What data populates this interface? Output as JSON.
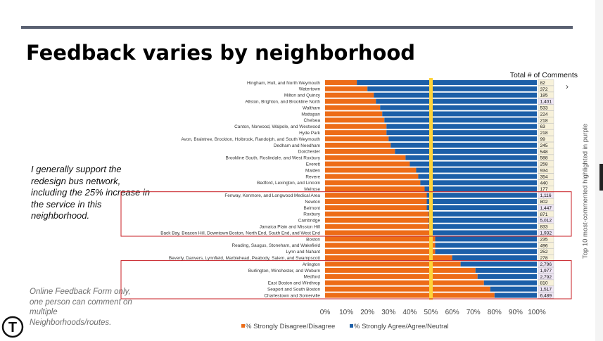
{
  "slide": {
    "title": "Feedback varies by neighborhood",
    "question": "I generally support the redesign bus network, including the 25% increase in the service in this neighborhood.",
    "note": "Online Feedback Form only, one person can comment on multiple Neighborhoods/routes.",
    "side_label": "Top 10 most-commented highlighted in purple",
    "chevron": "›",
    "logo_letter": "T"
  },
  "chart_data": {
    "type": "bar",
    "orientation": "horizontal-stacked-100",
    "title": "Feedback varies by neighborhood",
    "counts_header": "Total # of Comments",
    "xlim": [
      0,
      100
    ],
    "x_ticks": [
      "0%",
      "10%",
      "20%",
      "30%",
      "40%",
      "50%",
      "60%",
      "70%",
      "80%",
      "90%",
      "100%"
    ],
    "reference_line": 50,
    "legend_position": "bottom",
    "series": [
      {
        "name": "% Strongly Disagree/Disagree",
        "color": "#ed6c17"
      },
      {
        "name": "% Strongly Agree/Agree/Neutral",
        "color": "#1c5fa8"
      }
    ],
    "categories": [
      "Hingham, Hull, and North Weymouth",
      "Watertown",
      "Milton and Quincy",
      "Allston, Brighton, and Brookline North",
      "Waltham",
      "Mattapan",
      "Chelsea",
      "Canton, Norwood, Walpole, and Westwood",
      "Hyde Park",
      "Avon, Braintree, Brockton, Holbrook, Randolph, and South Weymouth",
      "Dedham and Needham",
      "Dorchester",
      "Brookline South, Roslindale, and West Roxbury",
      "Everett",
      "Malden",
      "Revere",
      "Bedford, Lexington, and Lincoln",
      "Melrose",
      "Fenway, Kenmore, and Longwood Medical Area",
      "Newton",
      "Belmont",
      "Roxbury",
      "Cambridge",
      "Jamaica Plain and Mission Hill",
      "Back Bay, Beacon Hill, Downtown Boston, North End, South End, and West End",
      "Boston",
      "Reading, Saugus, Stoneham, and Wakefield",
      "Lynn and Nahant",
      "Beverly, Danvers, Lynnfield, Marblehead, Peabody, Salem, and Swampscott",
      "Arlington",
      "Burlington, Winchester, and Woburn",
      "Medford",
      "East Boston and Winthrop",
      "Seaport and South Boston",
      "Charlestown and Somerville"
    ],
    "disagree_pct": [
      15,
      20,
      23,
      24,
      26,
      27,
      28,
      29,
      29,
      30,
      31,
      33,
      38,
      40,
      43,
      44,
      45,
      47,
      48,
      48,
      48,
      49,
      49,
      49,
      50,
      52,
      52,
      52,
      60,
      64,
      71,
      72,
      75,
      78,
      80
    ],
    "agree_pct": [
      85,
      80,
      77,
      76,
      74,
      73,
      72,
      71,
      71,
      70,
      69,
      67,
      62,
      60,
      57,
      56,
      55,
      53,
      52,
      52,
      52,
      51,
      51,
      51,
      50,
      48,
      48,
      48,
      40,
      36,
      29,
      28,
      25,
      22,
      20
    ],
    "counts": [
      "82",
      "372",
      "185",
      "1,401",
      "533",
      "224",
      "218",
      "63",
      "218",
      "99",
      "245",
      "548",
      "588",
      "258",
      "934",
      "354",
      "440",
      "177",
      "1,116",
      "802",
      "1,447",
      "871",
      "5,012",
      "833",
      "1,932",
      "235",
      "496",
      "252",
      "278",
      "2,796",
      "1,977",
      "2,792",
      "810",
      "1,517",
      "6,489"
    ],
    "top10_highlighted": [
      "1,401",
      "1,116",
      "1,447",
      "5,012",
      "1,932",
      "2,796",
      "1,977",
      "2,792",
      "1,517",
      "6,489"
    ]
  }
}
